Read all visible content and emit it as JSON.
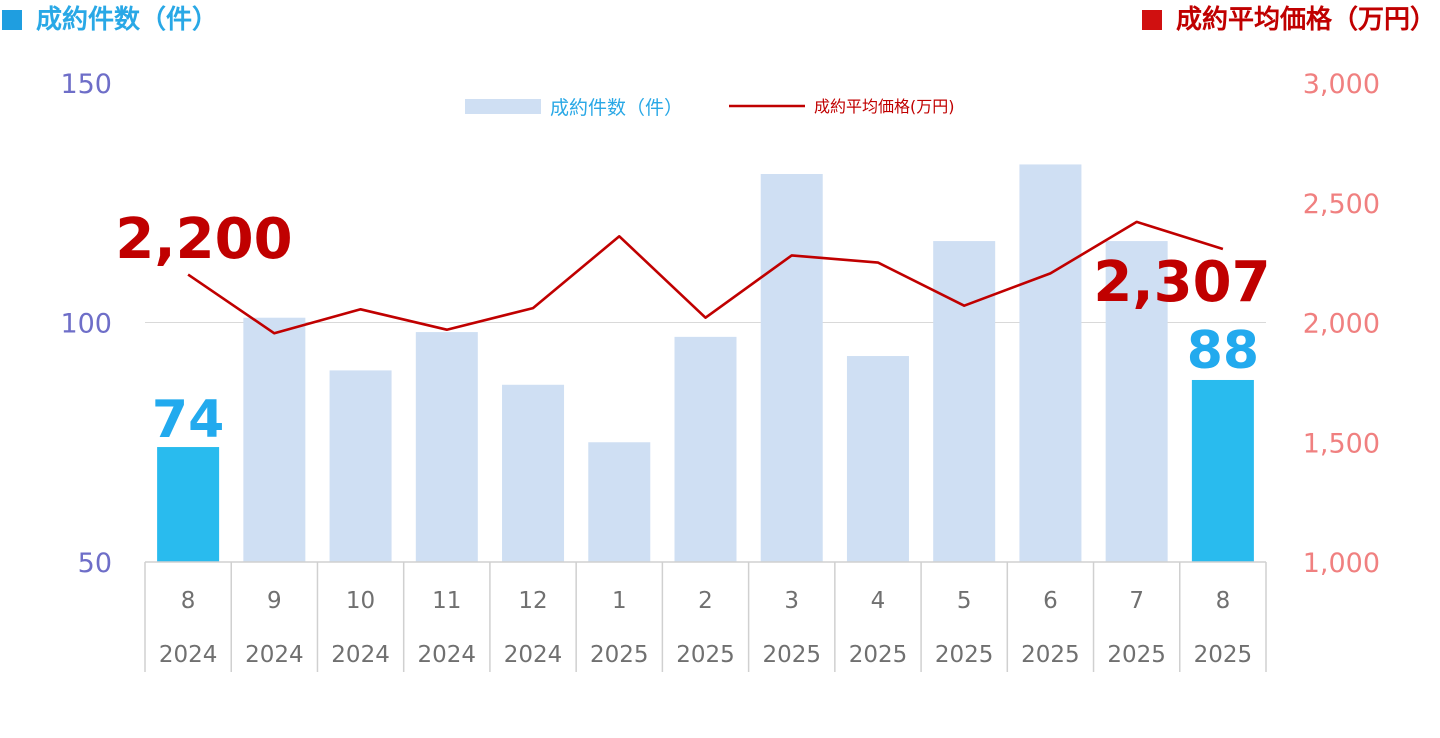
{
  "titles": {
    "left": "成約件数（件）",
    "right": "成約平均価格（万円）"
  },
  "legend": {
    "bar_label": "成約件数（件）",
    "line_label": "成約平均価格(万円)"
  },
  "colors": {
    "bar_default": "#cfdff3",
    "bar_highlight": "#29bbee",
    "line": "#c00000",
    "left_axis": "#6e6ec8",
    "right_axis": "#f08080",
    "count_label": "#22aaee",
    "price_label": "#c00000"
  },
  "chart_data": {
    "type": "bar+line",
    "categories": [
      {
        "month": "8",
        "year": "2024"
      },
      {
        "month": "9",
        "year": "2024"
      },
      {
        "month": "10",
        "year": "2024"
      },
      {
        "month": "11",
        "year": "2024"
      },
      {
        "month": "12",
        "year": "2024"
      },
      {
        "month": "1",
        "year": "2025"
      },
      {
        "month": "2",
        "year": "2025"
      },
      {
        "month": "3",
        "year": "2025"
      },
      {
        "month": "4",
        "year": "2025"
      },
      {
        "month": "5",
        "year": "2025"
      },
      {
        "month": "6",
        "year": "2025"
      },
      {
        "month": "7",
        "year": "2025"
      },
      {
        "month": "8",
        "year": "2025"
      }
    ],
    "series": [
      {
        "name": "成約件数（件）",
        "type": "bar",
        "axis": "left",
        "values": [
          74,
          101,
          90,
          98,
          87,
          75,
          97,
          131,
          93,
          117,
          133,
          117,
          88
        ],
        "highlight": [
          true,
          false,
          false,
          false,
          false,
          false,
          false,
          false,
          false,
          false,
          false,
          false,
          true
        ]
      },
      {
        "name": "成約平均価格(万円)",
        "type": "line",
        "axis": "right",
        "values": [
          2200,
          1955,
          2055,
          1970,
          2060,
          2360,
          2020,
          2280,
          2250,
          2070,
          2205,
          2420,
          2307
        ]
      }
    ],
    "left_axis": {
      "min": 50,
      "max": 150,
      "ticks": [
        "150",
        "100",
        "50"
      ]
    },
    "right_axis": {
      "min": 1000,
      "max": 3000,
      "ticks": [
        "3,000",
        "2,500",
        "2,000",
        "1,500",
        "1,000"
      ]
    },
    "gridline_at_left": 100,
    "data_labels": {
      "count_first": "74",
      "count_last": "88",
      "price_first": "2,200",
      "price_last": "2,307"
    },
    "legend_position": "top-center"
  }
}
